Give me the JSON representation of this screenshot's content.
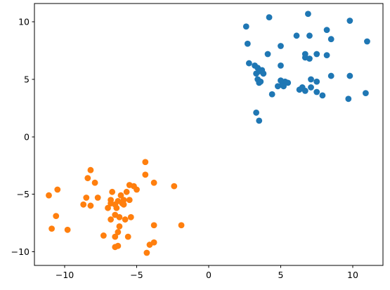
{
  "chart_data": {
    "type": "scatter",
    "title": "",
    "xlabel": "",
    "ylabel": "",
    "xlim": [
      -12.1,
      12.1
    ],
    "ylim": [
      -11.2,
      11.6
    ],
    "xticks": [
      -10,
      -5,
      0,
      5,
      10
    ],
    "yticks": [
      -10,
      -5,
      0,
      5,
      10
    ],
    "tick_labels": {
      "x": [
        "−10",
        "−5",
        "0",
        "5",
        "10"
      ],
      "y": [
        "−10",
        "−5",
        "0",
        "5",
        "10"
      ]
    },
    "grid": false,
    "legend": "none",
    "series": [
      {
        "color": "#1f77b4",
        "points": [
          [
            2.6,
            9.6
          ],
          [
            2.7,
            8.1
          ],
          [
            4.2,
            10.4
          ],
          [
            6.9,
            10.7
          ],
          [
            9.8,
            10.1
          ],
          [
            11.0,
            8.3
          ],
          [
            8.2,
            9.3
          ],
          [
            8.5,
            8.5
          ],
          [
            7.0,
            8.8
          ],
          [
            6.1,
            8.8
          ],
          [
            5.0,
            7.9
          ],
          [
            4.1,
            7.2
          ],
          [
            6.7,
            7.2
          ],
          [
            7.5,
            7.2
          ],
          [
            8.2,
            7.1
          ],
          [
            6.7,
            6.9
          ],
          [
            7.0,
            6.8
          ],
          [
            2.8,
            6.4
          ],
          [
            3.2,
            6.2
          ],
          [
            3.4,
            6.0
          ],
          [
            3.7,
            5.8
          ],
          [
            3.5,
            5.7
          ],
          [
            3.8,
            5.5
          ],
          [
            3.3,
            5.5
          ],
          [
            5.0,
            6.2
          ],
          [
            3.4,
            5.0
          ],
          [
            3.5,
            4.7
          ],
          [
            3.6,
            4.8
          ],
          [
            5.3,
            4.8
          ],
          [
            5.5,
            4.7
          ],
          [
            5.0,
            4.9
          ],
          [
            5.1,
            4.5
          ],
          [
            4.8,
            4.4
          ],
          [
            5.2,
            4.4
          ],
          [
            7.1,
            5.0
          ],
          [
            7.5,
            4.8
          ],
          [
            8.5,
            5.3
          ],
          [
            9.8,
            5.3
          ],
          [
            6.3,
            4.1
          ],
          [
            6.5,
            4.3
          ],
          [
            6.7,
            4.0
          ],
          [
            7.1,
            4.3
          ],
          [
            7.5,
            3.9
          ],
          [
            7.9,
            3.6
          ],
          [
            9.7,
            3.3
          ],
          [
            10.9,
            3.8
          ],
          [
            4.4,
            3.7
          ],
          [
            3.3,
            2.1
          ],
          [
            3.5,
            1.4
          ]
        ]
      },
      {
        "color": "#ff7f0e",
        "points": [
          [
            -4.4,
            -2.2
          ],
          [
            -8.2,
            -2.9
          ],
          [
            -8.4,
            -3.6
          ],
          [
            -4.4,
            -3.3
          ],
          [
            -7.9,
            -4.0
          ],
          [
            -5.5,
            -4.2
          ],
          [
            -5.2,
            -4.3
          ],
          [
            -3.8,
            -4.0
          ],
          [
            -2.4,
            -4.3
          ],
          [
            -10.5,
            -4.6
          ],
          [
            -11.1,
            -5.1
          ],
          [
            -8.5,
            -5.3
          ],
          [
            -7.7,
            -5.3
          ],
          [
            -6.7,
            -4.8
          ],
          [
            -6.1,
            -5.1
          ],
          [
            -5.7,
            -4.8
          ],
          [
            -5.9,
            -5.5
          ],
          [
            -5.5,
            -5.5
          ],
          [
            -5.0,
            -4.6
          ],
          [
            -6.8,
            -5.5
          ],
          [
            -6.3,
            -5.6
          ],
          [
            -6.0,
            -5.8
          ],
          [
            -5.9,
            -5.9
          ],
          [
            -8.7,
            -5.9
          ],
          [
            -8.2,
            -6.0
          ],
          [
            -6.8,
            -5.8
          ],
          [
            -6.5,
            -5.9
          ],
          [
            -7.0,
            -6.2
          ],
          [
            -6.4,
            -6.2
          ],
          [
            -10.6,
            -6.9
          ],
          [
            -6.5,
            -6.8
          ],
          [
            -6.2,
            -7.0
          ],
          [
            -6.8,
            -7.2
          ],
          [
            -5.8,
            -7.2
          ],
          [
            -5.4,
            -7.0
          ],
          [
            -10.9,
            -8.0
          ],
          [
            -9.8,
            -8.1
          ],
          [
            -6.2,
            -7.8
          ],
          [
            -3.8,
            -7.7
          ],
          [
            -1.9,
            -7.7
          ],
          [
            -6.3,
            -8.3
          ],
          [
            -7.3,
            -8.6
          ],
          [
            -6.5,
            -8.7
          ],
          [
            -5.6,
            -8.7
          ],
          [
            -4.1,
            -9.4
          ],
          [
            -3.8,
            -9.2
          ],
          [
            -6.3,
            -9.5
          ],
          [
            -6.5,
            -9.6
          ],
          [
            -4.3,
            -10.1
          ]
        ]
      }
    ]
  }
}
